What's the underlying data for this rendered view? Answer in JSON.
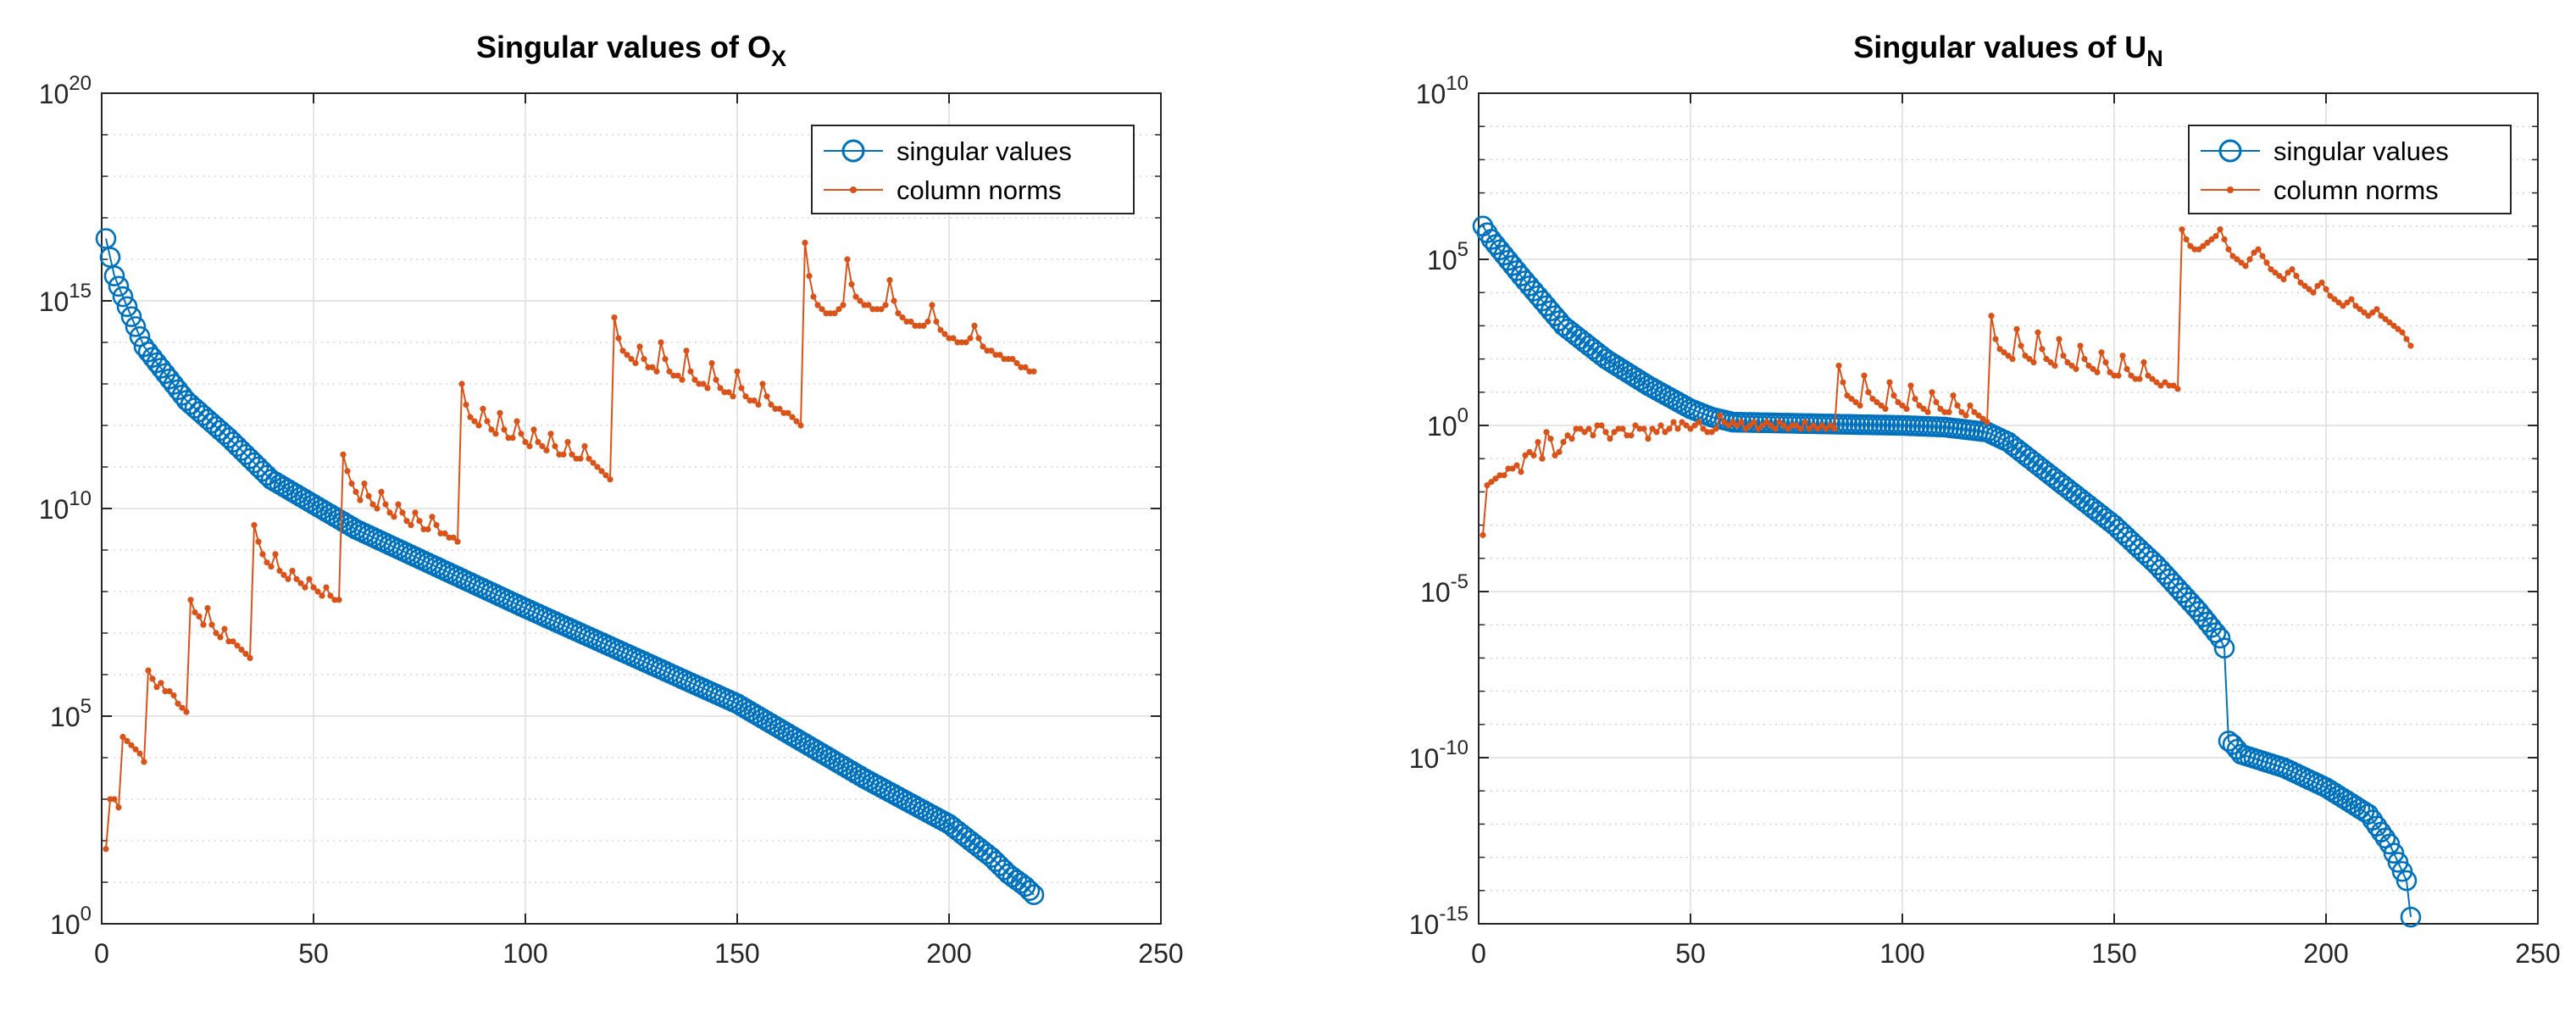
{
  "figure": {
    "background": "#ffffff"
  },
  "colors": {
    "singular_values": "#0072BD",
    "column_norms": "#D95319",
    "grid": "#dedede",
    "axis": "#262626"
  },
  "chart_data": [
    {
      "type": "line",
      "yscale": "log",
      "title": "Singular values of O",
      "title_subscript": "X",
      "xlabel": "",
      "ylabel": "",
      "xlim": [
        0,
        250
      ],
      "ylim_exp": [
        0,
        20
      ],
      "xticks": [
        0,
        50,
        100,
        150,
        200,
        250
      ],
      "xtick_labels": [
        "0",
        "50",
        "100",
        "150",
        "200",
        "250"
      ],
      "yticks_exp": [
        0,
        5,
        10,
        15,
        20
      ],
      "ytick_labels": [
        {
          "base": "10",
          "exp": "0"
        },
        {
          "base": "10",
          "exp": "5"
        },
        {
          "base": "10",
          "exp": "10"
        },
        {
          "base": "10",
          "exp": "15"
        },
        {
          "base": "10",
          "exp": "20"
        }
      ],
      "grid": true,
      "legend": {
        "location": "top-right",
        "entries": [
          "singular values",
          "column norms"
        ]
      },
      "series": [
        {
          "name": "singular values",
          "marker": "circle",
          "n": 220,
          "control_x": [
            1,
            3,
            5,
            10,
            20,
            30,
            40,
            60,
            100,
            150,
            180,
            200,
            210,
            214,
            216,
            218,
            219,
            220
          ],
          "control_log10": [
            16.5,
            15.6,
            15.1,
            13.9,
            12.6,
            11.7,
            10.7,
            9.5,
            7.6,
            5.3,
            3.5,
            2.4,
            1.6,
            1.2,
            1.05,
            0.9,
            0.8,
            0.7
          ]
        },
        {
          "name": "column norms",
          "marker": "dot",
          "n": 220,
          "segments": [
            {
              "start": 1,
              "end": 1,
              "levels": [
                1.8
              ]
            },
            {
              "start": 2,
              "end": 4,
              "levels": [
                3.0,
                3.0,
                2.8
              ]
            },
            {
              "start": 5,
              "end": 10,
              "levels": [
                4.5,
                4.4,
                4.3,
                4.2,
                4.1,
                3.9
              ]
            },
            {
              "start": 11,
              "end": 20,
              "levels": [
                6.1,
                5.9,
                5.7,
                5.8,
                5.6,
                5.6,
                5.5,
                5.3,
                5.2,
                5.1
              ]
            },
            {
              "start": 21,
              "end": 35,
              "levels": [
                7.8,
                7.5,
                7.4,
                7.2,
                7.6,
                7.2,
                7.0,
                6.9,
                7.1,
                6.8,
                6.8,
                6.7,
                6.6,
                6.5,
                6.4
              ]
            },
            {
              "start": 36,
              "end": 56,
              "levels": [
                9.6,
                9.2,
                8.9,
                8.7,
                8.6,
                8.9,
                8.5,
                8.4,
                8.3,
                8.5,
                8.3,
                8.2,
                8.1,
                8.3,
                8.1,
                8.0,
                7.9,
                8.1,
                7.9,
                7.8,
                7.8
              ]
            },
            {
              "start": 57,
              "end": 84,
              "levels": [
                11.3,
                10.9,
                10.6,
                10.4,
                10.2,
                10.6,
                10.3,
                10.1,
                10.0,
                10.4,
                10.1,
                9.9,
                9.8,
                10.1,
                9.9,
                9.7,
                9.6,
                9.9,
                9.7,
                9.5,
                9.5,
                9.8,
                9.6,
                9.4,
                9.4,
                9.3,
                9.3,
                9.2
              ]
            },
            {
              "start": 85,
              "end": 120,
              "levels": [
                13.0,
                12.5,
                12.2,
                12.1,
                12.0,
                12.4,
                12.1,
                11.9,
                11.8,
                12.3,
                11.9,
                11.7,
                11.7,
                12.1,
                11.8,
                11.6,
                11.5,
                11.9,
                11.6,
                11.5,
                11.4,
                11.8,
                11.5,
                11.3,
                11.3,
                11.6,
                11.3,
                11.2,
                11.2,
                11.5,
                11.2,
                11.1,
                11.0,
                10.9,
                10.8,
                10.7
              ]
            },
            {
              "start": 121,
              "end": 165,
              "levels": [
                14.6,
                14.1,
                13.8,
                13.7,
                13.6,
                13.5,
                13.9,
                13.6,
                13.4,
                13.4,
                13.3,
                14.0,
                13.6,
                13.3,
                13.2,
                13.2,
                13.1,
                13.8,
                13.3,
                13.1,
                13.0,
                13.0,
                12.9,
                13.5,
                13.1,
                12.9,
                12.8,
                12.8,
                12.7,
                13.3,
                12.9,
                12.7,
                12.6,
                12.6,
                12.5,
                13.0,
                12.7,
                12.5,
                12.4,
                12.4,
                12.3,
                12.3,
                12.2,
                12.1,
                12.0
              ]
            },
            {
              "start": 166,
              "end": 220,
              "levels": [
                16.4,
                15.6,
                15.1,
                14.9,
                14.8,
                14.7,
                14.7,
                14.7,
                14.8,
                14.9,
                16.0,
                15.4,
                15.1,
                15.0,
                14.9,
                14.9,
                14.8,
                14.8,
                14.8,
                14.9,
                15.5,
                15.0,
                14.7,
                14.6,
                14.5,
                14.5,
                14.4,
                14.4,
                14.4,
                14.5,
                14.9,
                14.5,
                14.3,
                14.2,
                14.1,
                14.1,
                14.0,
                14.0,
                14.0,
                14.1,
                14.4,
                14.1,
                13.9,
                13.8,
                13.8,
                13.7,
                13.7,
                13.6,
                13.6,
                13.6,
                13.5,
                13.4,
                13.4,
                13.3,
                13.3
              ]
            }
          ]
        }
      ]
    },
    {
      "type": "line",
      "yscale": "log",
      "title": "Singular values of U",
      "title_subscript": "N",
      "xlabel": "",
      "ylabel": "",
      "xlim": [
        0,
        250
      ],
      "ylim_exp": [
        -15,
        10
      ],
      "xticks": [
        0,
        50,
        100,
        150,
        200,
        250
      ],
      "xtick_labels": [
        "0",
        "50",
        "100",
        "150",
        "200",
        "250"
      ],
      "yticks_exp": [
        -15,
        -10,
        -5,
        0,
        5,
        10
      ],
      "ytick_labels": [
        {
          "base": "10",
          "exp": "-15"
        },
        {
          "base": "10",
          "exp": "-10"
        },
        {
          "base": "10",
          "exp": "-5"
        },
        {
          "base": "",
          "exp": "",
          "plain": "10^0"
        },
        {
          "base": "10",
          "exp": "5"
        },
        {
          "base": "10",
          "exp": "10"
        }
      ],
      "ytick_plain_labels": [
        "",
        "",
        "",
        "1",
        "",
        ""
      ],
      "grid": true,
      "legend": {
        "location": "top-right",
        "entries": [
          "singular values",
          "column norms"
        ]
      },
      "series": [
        {
          "name": "singular values",
          "marker": "circle",
          "n": 220,
          "control_x": [
            1,
            3,
            10,
            20,
            30,
            40,
            50,
            55,
            60,
            80,
            100,
            110,
            120,
            125,
            130,
            140,
            150,
            160,
            170,
            175,
            176,
            177,
            178,
            180,
            190,
            200,
            210,
            215,
            219,
            220
          ],
          "control_log10": [
            6.0,
            5.6,
            4.5,
            3.0,
            2.0,
            1.2,
            0.5,
            0.25,
            0.1,
            0.05,
            0.0,
            -0.05,
            -0.2,
            -0.5,
            -1.0,
            -2.0,
            -3.0,
            -4.2,
            -5.6,
            -6.4,
            -6.7,
            -9.5,
            -9.6,
            -9.9,
            -10.3,
            -10.9,
            -11.7,
            -12.6,
            -13.7,
            -14.8
          ]
        },
        {
          "name": "column norms",
          "marker": "dot",
          "n": 220,
          "segments": [
            {
              "start": 1,
              "end": 1,
              "levels": [
                -3.3
              ]
            },
            {
              "start": 2,
              "end": 4,
              "levels": [
                -1.8,
                -1.7,
                -1.6
              ]
            },
            {
              "start": 5,
              "end": 10,
              "levels": [
                -1.5,
                -1.5,
                -1.3,
                -1.3,
                -1.2,
                -1.4
              ]
            },
            {
              "start": 11,
              "end": 20,
              "levels": [
                -0.9,
                -0.8,
                -0.9,
                -0.5,
                -1.0,
                -0.2,
                -0.4,
                -0.9,
                -0.8,
                -0.5
              ]
            },
            {
              "start": 21,
              "end": 35,
              "levels": [
                -0.3,
                -0.4,
                -0.1,
                -0.1,
                -0.2,
                -0.1,
                -0.3,
                0.0,
                0.0,
                -0.2,
                -0.4,
                -0.2,
                -0.1,
                -0.1,
                -0.3
              ]
            },
            {
              "start": 36,
              "end": 56,
              "levels": [
                -0.3,
                0.0,
                -0.1,
                -0.1,
                -0.4,
                -0.1,
                -0.2,
                0.0,
                -0.2,
                -0.1,
                0.1,
                -0.1,
                0.1,
                0.0,
                -0.1,
                0.0,
                0.1,
                -0.1,
                -0.2,
                -0.2,
                -0.1
              ]
            },
            {
              "start": 57,
              "end": 84,
              "levels": [
                0.3,
                0.1,
                0.0,
                0.1,
                0.0,
                0.1,
                -0.1,
                0.0,
                0.1,
                -0.1,
                0.0,
                0.1,
                0.0,
                -0.1,
                0.1,
                0.0,
                -0.1,
                0.0,
                0.0,
                -0.1,
                0.1,
                -0.1,
                0.0,
                -0.1,
                0.0,
                -0.1,
                0.0,
                -0.1
              ]
            },
            {
              "start": 85,
              "end": 120,
              "levels": [
                1.8,
                1.3,
                0.9,
                0.8,
                0.7,
                0.6,
                1.5,
                1.0,
                0.8,
                0.7,
                0.6,
                0.5,
                1.3,
                0.9,
                0.7,
                0.6,
                0.5,
                1.2,
                0.8,
                0.6,
                0.5,
                0.4,
                1.0,
                0.7,
                0.5,
                0.4,
                0.4,
                0.9,
                0.6,
                0.4,
                0.3,
                0.6,
                0.4,
                0.3,
                0.2,
                0.1
              ]
            },
            {
              "start": 121,
              "end": 165,
              "levels": [
                3.3,
                2.6,
                2.3,
                2.2,
                2.1,
                2.0,
                2.9,
                2.4,
                2.1,
                2.0,
                1.9,
                2.8,
                2.3,
                2.0,
                1.9,
                1.8,
                2.6,
                2.1,
                1.9,
                1.8,
                1.7,
                2.4,
                2.0,
                1.8,
                1.7,
                1.6,
                2.2,
                1.9,
                1.6,
                1.5,
                1.5,
                2.1,
                1.7,
                1.5,
                1.4,
                1.4,
                1.9,
                1.5,
                1.4,
                1.3,
                1.2,
                1.3,
                1.2,
                1.2,
                1.1
              ]
            },
            {
              "start": 166,
              "end": 220,
              "levels": [
                5.9,
                5.6,
                5.4,
                5.3,
                5.3,
                5.4,
                5.5,
                5.6,
                5.7,
                5.9,
                5.6,
                5.3,
                5.1,
                5.0,
                4.9,
                4.8,
                5.0,
                5.2,
                5.3,
                5.1,
                4.9,
                4.7,
                4.6,
                4.5,
                4.4,
                4.6,
                4.7,
                4.5,
                4.3,
                4.2,
                4.1,
                4.0,
                4.2,
                4.3,
                4.1,
                3.9,
                3.8,
                3.7,
                3.6,
                3.7,
                3.8,
                3.6,
                3.5,
                3.4,
                3.3,
                3.4,
                3.5,
                3.3,
                3.2,
                3.1,
                3.0,
                2.9,
                2.8,
                2.6,
                2.4
              ]
            }
          ]
        }
      ]
    }
  ]
}
